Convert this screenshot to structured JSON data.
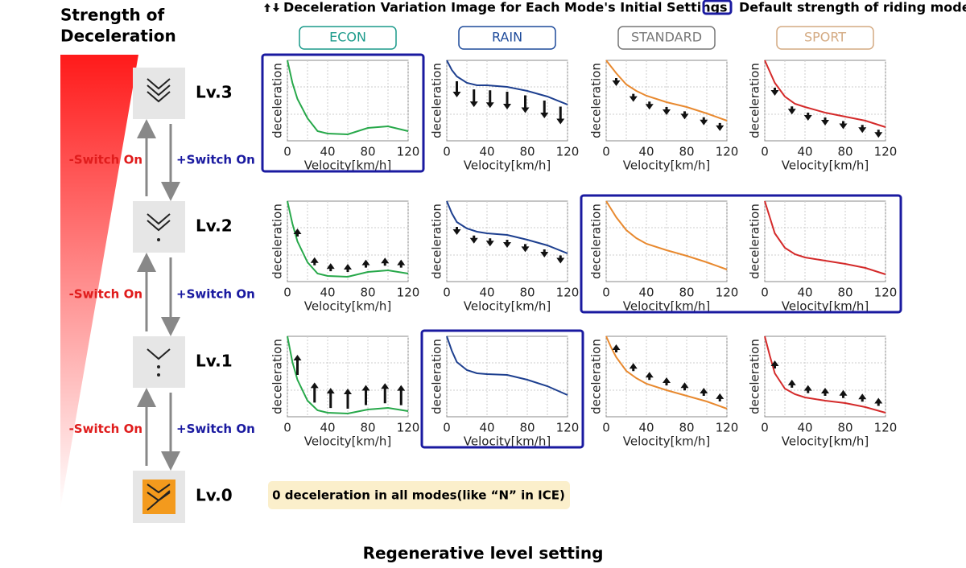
{
  "header": {
    "left_title_1": "Strength of",
    "left_title_2": "Deceleration",
    "arrow_legend": "Deceleration Variation Image for Each Mode's Initial Settings",
    "box_legend": "Default strength of riding mode"
  },
  "modes": [
    {
      "name": "ECON",
      "label_color": "#1a9a8a",
      "color": "#27a84a"
    },
    {
      "name": "RAIN",
      "label_color": "#1d4a9a",
      "color": "#1d3f8f"
    },
    {
      "name": "STANDARD",
      "label_color": "#777777",
      "color": "#e8892f"
    },
    {
      "name": "SPORT",
      "label_color": "#d4aa82",
      "color": "#d42a2a"
    }
  ],
  "axis": {
    "ylabel": "deceleration",
    "xlabel": "Velocity[km/h]",
    "xlim": [
      0,
      120
    ],
    "xticks": [
      0,
      40,
      80,
      120
    ],
    "ylim": [
      0,
      1
    ],
    "yticks": [
      0.33,
      0.67
    ],
    "grid_x": [
      20,
      60,
      100
    ]
  },
  "curve_x": [
    0,
    5,
    10,
    20,
    30,
    40,
    60,
    80,
    100,
    120
  ],
  "arrow_x": [
    10,
    27,
    43,
    60,
    78,
    97,
    113
  ],
  "switch": {
    "minus": "-Switch On",
    "plus": "+Switch On"
  },
  "levels": [
    {
      "label": "Lv.3",
      "charts": [
        {
          "default": true,
          "curve": [
            1.0,
            0.72,
            0.52,
            0.28,
            0.12,
            0.09,
            0.08,
            0.16,
            0.18,
            0.12
          ],
          "arrows": []
        },
        {
          "default": false,
          "curve": [
            1.0,
            0.88,
            0.8,
            0.72,
            0.69,
            0.69,
            0.67,
            0.62,
            0.55,
            0.45
          ],
          "arrows": [
            -0.2,
            -0.22,
            -0.22,
            -0.22,
            -0.22,
            -0.22,
            -0.22
          ]
        },
        {
          "default": false,
          "curve": [
            1.0,
            0.92,
            0.84,
            0.7,
            0.62,
            0.56,
            0.48,
            0.42,
            0.34,
            0.25
          ],
          "arrows": [
            -0.1,
            -0.1,
            -0.1,
            -0.1,
            -0.1,
            -0.1,
            -0.1
          ]
        },
        {
          "default": false,
          "curve": [
            1.0,
            0.86,
            0.72,
            0.55,
            0.46,
            0.42,
            0.35,
            0.3,
            0.25,
            0.17
          ],
          "arrows": [
            -0.1,
            -0.1,
            -0.1,
            -0.1,
            -0.1,
            -0.1,
            -0.1
          ]
        }
      ]
    },
    {
      "label": "Lv.2",
      "charts": [
        {
          "default": false,
          "curve": [
            1.0,
            0.72,
            0.5,
            0.24,
            0.1,
            0.07,
            0.06,
            0.12,
            0.14,
            0.1
          ],
          "arrows": [
            0.1,
            0.1,
            0.1,
            0.1,
            0.1,
            0.1,
            0.1
          ]
        },
        {
          "default": false,
          "curve": [
            1.0,
            0.85,
            0.74,
            0.66,
            0.62,
            0.6,
            0.58,
            0.52,
            0.45,
            0.35
          ],
          "arrows": [
            -0.1,
            -0.1,
            -0.1,
            -0.1,
            -0.1,
            -0.1,
            -0.1
          ]
        },
        {
          "default": true,
          "curve": [
            1.0,
            0.9,
            0.8,
            0.64,
            0.54,
            0.47,
            0.39,
            0.32,
            0.24,
            0.15
          ],
          "arrows": []
        },
        {
          "default": true,
          "curve": [
            1.0,
            0.8,
            0.6,
            0.42,
            0.34,
            0.3,
            0.26,
            0.22,
            0.17,
            0.09
          ],
          "arrows": []
        }
      ]
    },
    {
      "label": "Lv.1",
      "charts": [
        {
          "default": false,
          "curve": [
            1.0,
            0.68,
            0.46,
            0.2,
            0.08,
            0.05,
            0.04,
            0.09,
            0.11,
            0.07
          ],
          "arrows": [
            0.25,
            0.25,
            0.25,
            0.25,
            0.25,
            0.25,
            0.25
          ]
        },
        {
          "default": true,
          "curve": [
            1.0,
            0.82,
            0.68,
            0.58,
            0.54,
            0.53,
            0.52,
            0.46,
            0.38,
            0.27
          ],
          "arrows": []
        },
        {
          "default": false,
          "curve": [
            1.0,
            0.86,
            0.74,
            0.57,
            0.48,
            0.41,
            0.33,
            0.26,
            0.19,
            0.1
          ],
          "arrows": [
            0.1,
            0.1,
            0.1,
            0.1,
            0.1,
            0.1,
            0.1
          ]
        },
        {
          "default": false,
          "curve": [
            1.0,
            0.76,
            0.54,
            0.35,
            0.28,
            0.24,
            0.2,
            0.17,
            0.12,
            0.05
          ],
          "arrows": [
            0.1,
            0.1,
            0.1,
            0.1,
            0.1,
            0.1,
            0.1
          ]
        }
      ]
    },
    {
      "label": "Lv.0",
      "note": "0 deceleration in all modes(like “N” in ICE)"
    }
  ],
  "footer": "Regenerative level setting"
}
